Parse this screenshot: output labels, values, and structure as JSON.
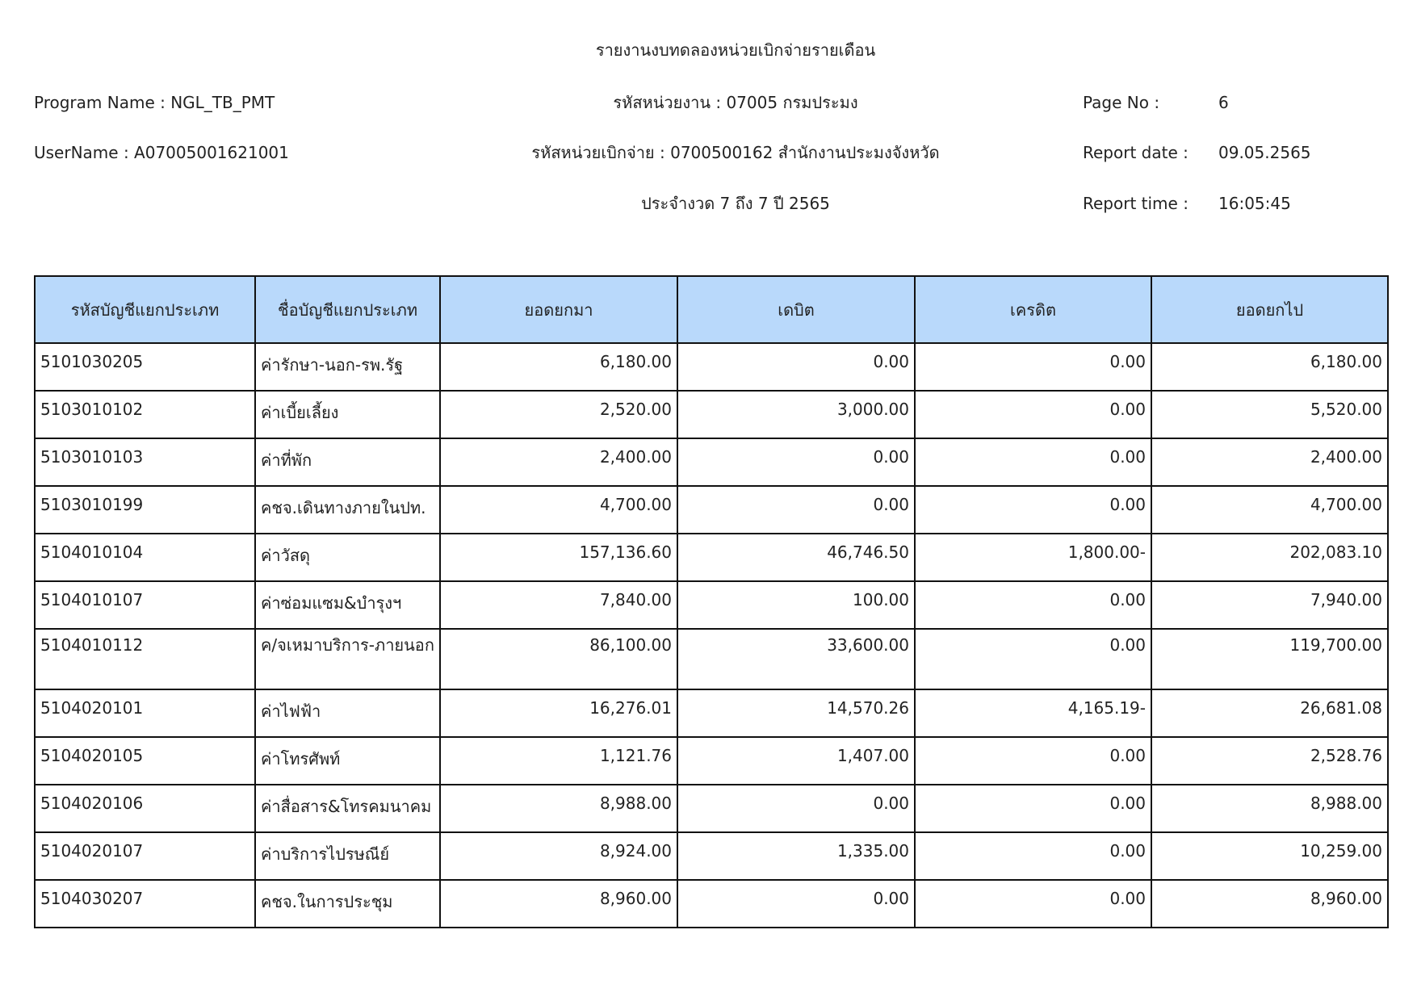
{
  "header": {
    "title": "รายงานงบทดลองหน่วยเบิกจ่ายรายเดือน",
    "program_name": "Program Name : NGL_TB_PMT",
    "username": "UserName : A07005001621001",
    "agency": "รหัสหน่วยงาน : 07005 กรมประมง",
    "disbursing_unit": "รหัสหน่วยเบิกจ่าย : 0700500162 สำนักงานประมงจังหวัด",
    "period": "ประจำงวด 7 ถึง 7 ปี 2565",
    "page_no_label": "Page No :",
    "page_no": "6",
    "report_date_label": "Report date :",
    "report_date": "09.05.2565",
    "report_time_label": "Report time :",
    "report_time": "16:05:45"
  },
  "table": {
    "columns": [
      "รหัสบัญชีแยกประเภท",
      "ชื่อบัญชีแยกประเภท",
      "ยอดยกมา",
      "เดบิต",
      "เครดิต",
      "ยอดยกไป"
    ],
    "rows": [
      [
        "5101030205",
        "ค่ารักษา-นอก-รพ.รัฐ",
        "6,180.00",
        "0.00",
        "0.00",
        "6,180.00"
      ],
      [
        "5103010102",
        "ค่าเบี้ยเลี้ยง",
        "2,520.00",
        "3,000.00",
        "0.00",
        "5,520.00"
      ],
      [
        "5103010103",
        "ค่าที่พัก",
        "2,400.00",
        "0.00",
        "0.00",
        "2,400.00"
      ],
      [
        "5103010199",
        "คชจ.เดินทางภายในปท.",
        "4,700.00",
        "0.00",
        "0.00",
        "4,700.00"
      ],
      [
        "5104010104",
        "ค่าวัสดุ",
        "157,136.60",
        "46,746.50",
        "1,800.00-",
        "202,083.10"
      ],
      [
        "5104010107",
        "ค่าซ่อมแซม&บำรุงฯ",
        "7,840.00",
        "100.00",
        "0.00",
        "7,940.00"
      ],
      [
        "5104010112",
        "ค/จเหมาบริการ-ภายนอก",
        "86,100.00",
        "33,600.00",
        "0.00",
        "119,700.00"
      ],
      [
        "5104020101",
        "ค่าไฟฟ้า",
        "16,276.01",
        "14,570.26",
        "4,165.19-",
        "26,681.08"
      ],
      [
        "5104020105",
        "ค่าโทรศัพท์",
        "1,121.76",
        "1,407.00",
        "0.00",
        "2,528.76"
      ],
      [
        "5104020106",
        "ค่าสื่อสาร&โทรคมนาคม",
        "8,988.00",
        "0.00",
        "0.00",
        "8,988.00"
      ],
      [
        "5104020107",
        "ค่าบริการไปรษณีย์",
        "8,924.00",
        "1,335.00",
        "0.00",
        "10,259.00"
      ],
      [
        "5104030207",
        "คชจ.ในการประชุม",
        "8,960.00",
        "0.00",
        "0.00",
        "8,960.00"
      ]
    ]
  }
}
